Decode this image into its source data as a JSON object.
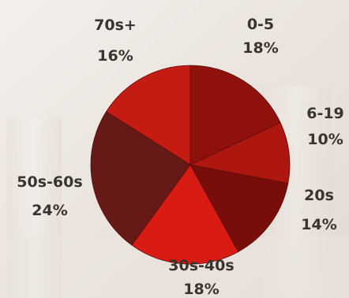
{
  "chart_data": {
    "type": "pie",
    "slices": [
      {
        "label": "0-5",
        "value": 18,
        "pct_label": "18%",
        "color": "#8e110b"
      },
      {
        "label": "6-19",
        "value": 10,
        "pct_label": "10%",
        "color": "#ad1710"
      },
      {
        "label": "20s",
        "value": 14,
        "pct_label": "14%",
        "color": "#780d0a"
      },
      {
        "label": "30s-40s",
        "value": 18,
        "pct_label": "18%",
        "color": "#d81c14"
      },
      {
        "label": "50s-60s",
        "value": 24,
        "pct_label": "24%",
        "color": "#651a18"
      },
      {
        "label": "70s+",
        "value": 16,
        "pct_label": "16%",
        "color": "#c41c13"
      }
    ],
    "start": "top",
    "direction": "clockwise",
    "legend": "none"
  },
  "colors": {
    "label_text": "#3a3430",
    "background": "#efe9e4"
  }
}
